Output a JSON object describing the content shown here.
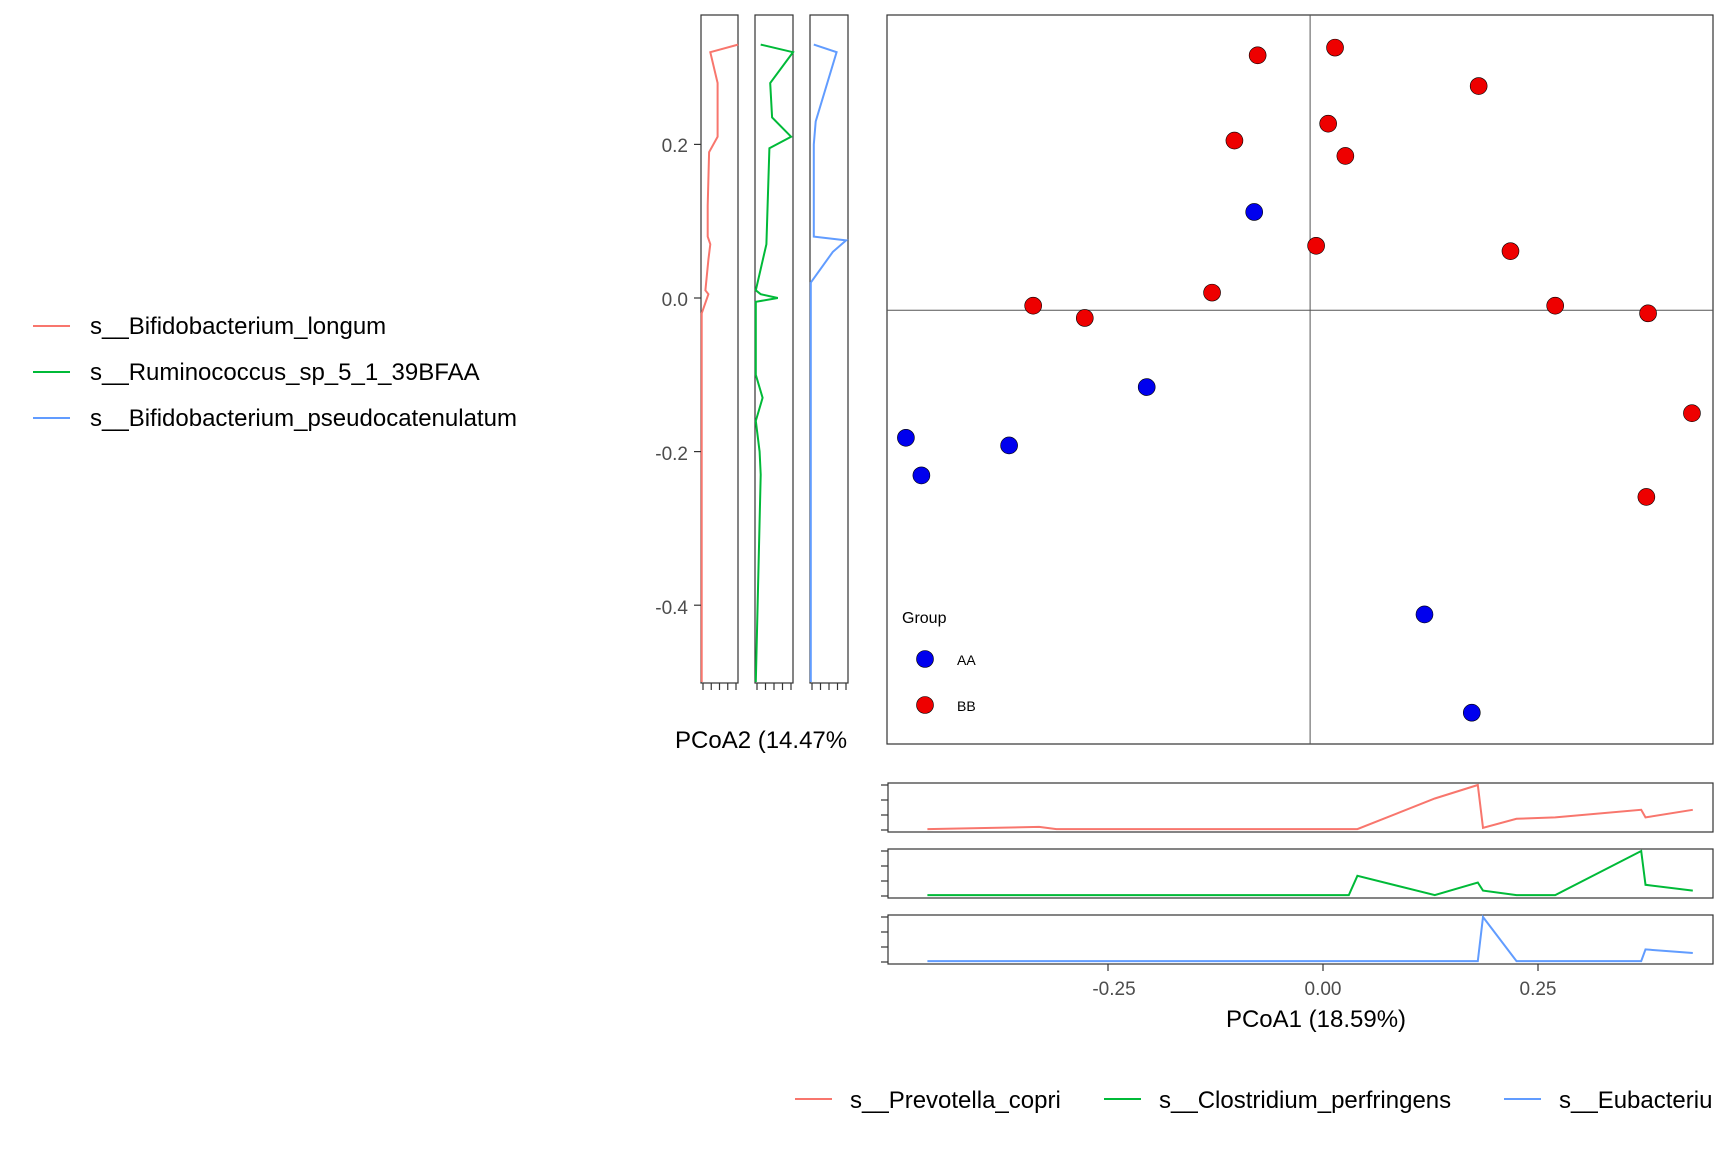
{
  "chart_data": {
    "type": "scatter",
    "xlabel": "PCoA1 (18.59%)",
    "ylabel": "PCoA2 (14.47%",
    "xlim": [
      -0.5,
      0.47
    ],
    "ylim": [
      -0.54,
      0.37
    ],
    "x_ticks": [
      -0.25,
      0.0,
      0.25
    ],
    "x_tick_labels": [
      "-0.25",
      "0.00",
      "0.25"
    ],
    "y_ticks": [
      0.2,
      0.0,
      -0.2,
      -0.4
    ],
    "y_tick_labels": [
      "0.2",
      "0.0",
      "-0.2",
      "-0.4"
    ],
    "grid": false,
    "reference_lines": {
      "x": -0.015,
      "y": -0.016
    },
    "legend": {
      "title": "Group",
      "placement": "bottom-left",
      "entries": [
        {
          "label": "AA",
          "color": "#0000ee"
        },
        {
          "label": "BB",
          "color": "#ee0000"
        }
      ]
    },
    "series": [
      {
        "name": "AA",
        "color": "#0000ee",
        "points": [
          {
            "x": -0.08,
            "y": 0.112
          },
          {
            "x": -0.205,
            "y": -0.116
          },
          {
            "x": -0.365,
            "y": -0.192
          },
          {
            "x": -0.485,
            "y": -0.182
          },
          {
            "x": -0.467,
            "y": -0.231
          },
          {
            "x": 0.118,
            "y": -0.412
          },
          {
            "x": 0.173,
            "y": -0.54
          }
        ]
      },
      {
        "name": "BB",
        "color": "#ee0000",
        "points": [
          {
            "x": -0.076,
            "y": 0.316
          },
          {
            "x": 0.014,
            "y": 0.326
          },
          {
            "x": 0.006,
            "y": 0.227
          },
          {
            "x": -0.103,
            "y": 0.205
          },
          {
            "x": 0.026,
            "y": 0.185
          },
          {
            "x": 0.181,
            "y": 0.276
          },
          {
            "x": -0.008,
            "y": 0.068
          },
          {
            "x": 0.218,
            "y": 0.061
          },
          {
            "x": -0.129,
            "y": 0.007
          },
          {
            "x": -0.337,
            "y": -0.01
          },
          {
            "x": -0.277,
            "y": -0.026
          },
          {
            "x": 0.27,
            "y": -0.01
          },
          {
            "x": 0.378,
            "y": -0.02
          },
          {
            "x": 0.429,
            "y": -0.15
          },
          {
            "x": 0.376,
            "y": -0.259
          }
        ]
      }
    ],
    "marginal_x": {
      "xlabel": "PCoA1 (18.59%)",
      "series": [
        {
          "name": "s__Prevotella_copri",
          "color": "#f8766d",
          "x": [
            -0.46,
            -0.33,
            -0.31,
            0.04,
            0.13,
            0.18,
            0.186,
            0.225,
            0.27,
            0.37,
            0.375,
            0.43
          ],
          "y": [
            0.02,
            0.07,
            0.02,
            0.02,
            0.7,
            1.0,
            0.05,
            0.25,
            0.28,
            0.45,
            0.28,
            0.45
          ]
        },
        {
          "name": "s__Clostridium_perfringens",
          "color": "#00ba38",
          "x": [
            -0.46,
            0.03,
            0.04,
            0.13,
            0.18,
            0.186,
            0.225,
            0.27,
            0.37,
            0.375,
            0.43
          ],
          "y": [
            0.02,
            0.02,
            0.45,
            0.02,
            0.3,
            0.12,
            0.02,
            0.02,
            1.0,
            0.25,
            0.12
          ]
        },
        {
          "name": "s__Eubacterium_ventriosum",
          "color": "#619cff",
          "x": [
            -0.46,
            0.18,
            0.186,
            0.225,
            0.37,
            0.375,
            0.43
          ],
          "y": [
            0.02,
            0.02,
            1.0,
            0.02,
            0.02,
            0.28,
            0.2
          ]
        }
      ],
      "legend_entries": [
        "s__Prevotella_copri",
        "s__Clostridium_perfringens",
        "s__Eubacteriu"
      ]
    },
    "marginal_y": {
      "ylabel": "PCoA2 (14.47%",
      "series": [
        {
          "name": "s__Bifidobacterium_longum",
          "color": "#f8766d",
          "y": [
            0.33,
            0.32,
            0.28,
            0.21,
            0.19,
            0.12,
            0.08,
            0.07,
            0.05,
            0.01,
            0.005,
            -0.02,
            -0.5
          ],
          "x": [
            1.0,
            0.25,
            0.45,
            0.45,
            0.22,
            0.18,
            0.18,
            0.25,
            0.2,
            0.12,
            0.2,
            0.02,
            0.02
          ]
        },
        {
          "name": "s__Ruminococcus_sp_5_1_39BFAA",
          "color": "#00ba38",
          "y": [
            0.33,
            0.32,
            0.28,
            0.235,
            0.21,
            0.195,
            0.07,
            0.01,
            0.005,
            0.0,
            -0.005,
            -0.1,
            -0.13,
            -0.16,
            -0.2,
            -0.23,
            -0.5
          ],
          "x": [
            0.15,
            1.0,
            0.4,
            0.45,
            0.95,
            0.38,
            0.3,
            0.02,
            0.15,
            0.6,
            0.02,
            0.02,
            0.2,
            0.02,
            0.12,
            0.15,
            0.02
          ]
        },
        {
          "name": "s__Bifidobacterium_pseudocatenulatum",
          "color": "#619cff",
          "y": [
            0.33,
            0.32,
            0.23,
            0.2,
            0.08,
            0.075,
            0.06,
            0.02,
            0.0,
            -0.5
          ],
          "x": [
            0.1,
            0.7,
            0.15,
            0.1,
            0.1,
            0.95,
            0.6,
            0.02,
            0.02,
            0.02
          ]
        }
      ],
      "legend_entries": [
        "s__Bifidobacterium_longum",
        "s__Ruminococcus_sp_5_1_39BFAA",
        "s__Bifidobacterium_pseudocatenulatum"
      ]
    }
  }
}
